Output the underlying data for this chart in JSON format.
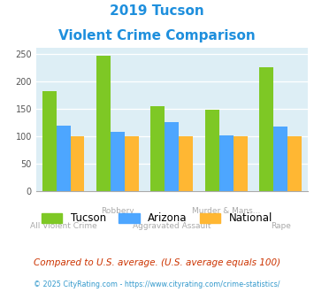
{
  "title_line1": "2019 Tucson",
  "title_line2": "Violent Crime Comparison",
  "title_color": "#1e8fdd",
  "categories": [
    "All Violent Crime",
    "Robbery",
    "Aggravated Assault",
    "Murder & Mans...",
    "Rape"
  ],
  "tucson": [
    182,
    246,
    155,
    148,
    225
  ],
  "arizona": [
    120,
    108,
    126,
    101,
    118
  ],
  "national": [
    100,
    100,
    100,
    100,
    100
  ],
  "tucson_color": "#7ec825",
  "arizona_color": "#4da6ff",
  "national_color": "#ffb733",
  "ylim": [
    0,
    260
  ],
  "yticks": [
    0,
    50,
    100,
    150,
    200,
    250
  ],
  "bg_color": "#ddeef5",
  "fig_bg": "#ffffff",
  "footer_note": "Compared to U.S. average. (U.S. average equals 100)",
  "footer_credit": "© 2025 CityRating.com - https://www.cityrating.com/crime-statistics/",
  "footer_note_color": "#cc3300",
  "footer_credit_color": "#3399cc",
  "xlabel_row1": [
    "",
    "Robbery",
    "",
    "Murder & Mans...",
    ""
  ],
  "xlabel_row2": [
    "All Violent Crime",
    "",
    "Aggravated Assault",
    "",
    "Rape"
  ],
  "xlabel_color": "#aaaaaa"
}
